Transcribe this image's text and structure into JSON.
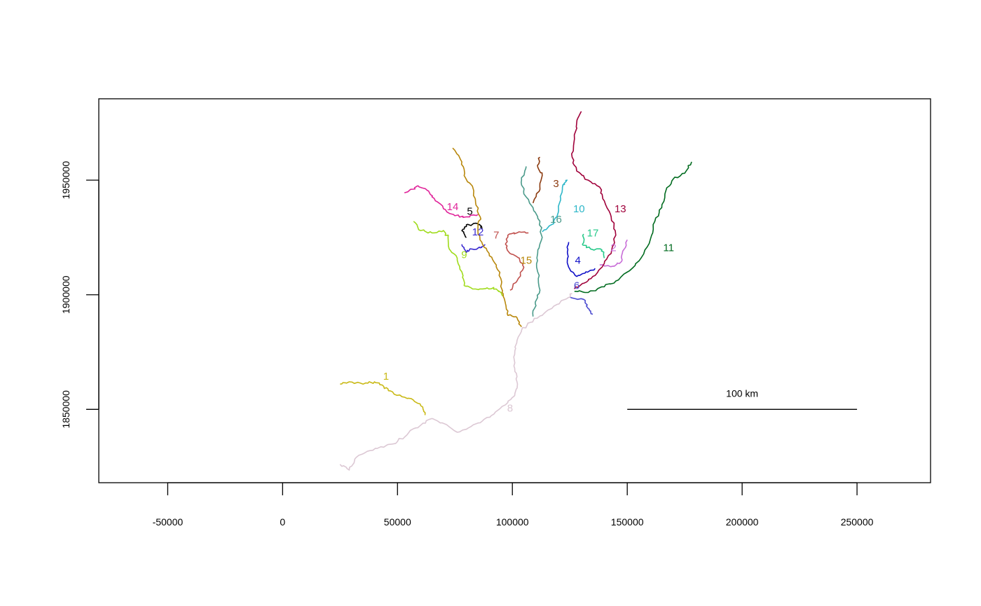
{
  "map": {
    "type": "river-network",
    "x_axis": {
      "ticks": [
        -50000,
        0,
        50000,
        100000,
        150000,
        200000,
        250000
      ],
      "tick_labels": [
        "-50000",
        "0",
        "50000",
        "100000",
        "150000",
        "200000",
        "250000"
      ],
      "range": [
        -80000,
        282000
      ]
    },
    "y_axis": {
      "ticks": [
        1850000,
        1900000,
        1950000
      ],
      "tick_labels": [
        "1850000",
        "1900000",
        "1950000"
      ],
      "range": [
        1818000,
        1985500
      ]
    },
    "scale_bar": {
      "label": "100 km",
      "from_x": 150000,
      "to_x": 250000,
      "y": 1850000
    },
    "reaches": [
      {
        "id": "1",
        "label": "1",
        "color": "#c9b916",
        "label_at": [
          45000,
          1864500
        ],
        "path": [
          [
            25000,
            1861000
          ],
          [
            29000,
            1862000
          ],
          [
            35000,
            1861000
          ],
          [
            40000,
            1862000
          ],
          [
            44000,
            1860000
          ],
          [
            47000,
            1858000
          ],
          [
            52000,
            1855500
          ],
          [
            57000,
            1854000
          ],
          [
            61000,
            1851000
          ],
          [
            62000,
            1847500
          ]
        ]
      },
      {
        "id": "2",
        "label": "2",
        "color": "#c86dd7",
        "label_at": [
          144000,
          1920500
        ],
        "path": [
          [
            150000,
            1924000
          ],
          [
            148000,
            1919000
          ],
          [
            147500,
            1914500
          ],
          [
            144000,
            1912500
          ],
          [
            138000,
            1913000
          ]
        ]
      },
      {
        "id": "3",
        "label": "3",
        "color": "#8b3a0f",
        "label_at": [
          119000,
          1948500
        ],
        "path": [
          [
            112000,
            1960000
          ],
          [
            111000,
            1956000
          ],
          [
            113000,
            1952000
          ],
          [
            112000,
            1946000
          ],
          [
            109000,
            1940000
          ]
        ]
      },
      {
        "id": "4",
        "label": "4",
        "color": "#1010c8",
        "label_at": [
          128500,
          1915000
        ],
        "path": [
          [
            124500,
            1923000
          ],
          [
            124000,
            1918000
          ],
          [
            124500,
            1912000
          ],
          [
            128000,
            1908000
          ],
          [
            132000,
            1910000
          ],
          [
            136000,
            1911500
          ]
        ]
      },
      {
        "id": "5",
        "label": "5",
        "color": "#000000",
        "label_at": [
          81500,
          1936500
        ],
        "path": [
          [
            80000,
            1925000
          ],
          [
            78000,
            1928000
          ],
          [
            80000,
            1930500
          ],
          [
            85000,
            1931000
          ],
          [
            87000,
            1929000
          ]
        ]
      },
      {
        "id": "6",
        "label": "6",
        "color": "#4c4cd0",
        "label_at": [
          128000,
          1904000
        ],
        "path": [
          [
            125000,
            1899000
          ],
          [
            131000,
            1898000
          ],
          [
            133000,
            1894000
          ],
          [
            135000,
            1891500
          ]
        ]
      },
      {
        "id": "7",
        "label": "7",
        "color": "#c0504d",
        "label_at": [
          93000,
          1926000
        ],
        "path": [
          [
            107000,
            1927000
          ],
          [
            102000,
            1927000
          ],
          [
            98000,
            1926000
          ],
          [
            97000,
            1922000
          ],
          [
            99000,
            1918000
          ],
          [
            103000,
            1916000
          ],
          [
            105000,
            1912000
          ],
          [
            102000,
            1906000
          ],
          [
            99000,
            1902000
          ]
        ]
      },
      {
        "id": "8",
        "label": "8",
        "color": "#dcc8d4",
        "label_at": [
          99000,
          1850500
        ],
        "path": [
          [
            25000,
            1826000
          ],
          [
            29000,
            1823500
          ],
          [
            32000,
            1829000
          ],
          [
            38000,
            1832000
          ],
          [
            44000,
            1833500
          ],
          [
            50000,
            1836000
          ],
          [
            55000,
            1840000
          ],
          [
            60000,
            1843000
          ],
          [
            65000,
            1846000
          ],
          [
            71000,
            1843500
          ],
          [
            76000,
            1840000
          ],
          [
            82000,
            1842500
          ],
          [
            87000,
            1845000
          ],
          [
            92000,
            1848000
          ],
          [
            97000,
            1852000
          ],
          [
            101000,
            1856000
          ],
          [
            102000,
            1862000
          ],
          [
            101000,
            1868000
          ],
          [
            101000,
            1874000
          ],
          [
            102000,
            1880000
          ],
          [
            104000,
            1884500
          ],
          [
            108000,
            1888000
          ],
          [
            113000,
            1891000
          ],
          [
            118000,
            1895000
          ],
          [
            123000,
            1898000
          ],
          [
            126000,
            1900500
          ]
        ]
      },
      {
        "id": "9",
        "label": "9",
        "color": "#9fdb1a",
        "label_at": [
          79000,
          1917500
        ],
        "path": [
          [
            57000,
            1932000
          ],
          [
            60000,
            1928000
          ],
          [
            65000,
            1927000
          ],
          [
            70000,
            1928000
          ],
          [
            72000,
            1925000
          ],
          [
            72500,
            1920000
          ],
          [
            76000,
            1916000
          ],
          [
            78000,
            1910000
          ],
          [
            79000,
            1904000
          ],
          [
            84000,
            1902500
          ],
          [
            89000,
            1903000
          ],
          [
            93000,
            1902500
          ],
          [
            96000,
            1899500
          ]
        ]
      },
      {
        "id": "10",
        "label": "10",
        "color": "#2eb7c9",
        "label_at": [
          129000,
          1937500
        ],
        "path": [
          [
            124000,
            1950000
          ],
          [
            122000,
            1948000
          ],
          [
            121000,
            1942000
          ],
          [
            120000,
            1936000
          ],
          [
            118000,
            1931000
          ],
          [
            113000,
            1927500
          ]
        ]
      },
      {
        "id": "11",
        "label": "11",
        "color": "#006b1f",
        "label_at": [
          168000,
          1920500
        ],
        "path": [
          [
            178000,
            1958000
          ],
          [
            175000,
            1953000
          ],
          [
            170000,
            1950500
          ],
          [
            167000,
            1946000
          ],
          [
            165000,
            1938000
          ],
          [
            162000,
            1932000
          ],
          [
            160000,
            1924000
          ],
          [
            156000,
            1916000
          ],
          [
            151000,
            1910500
          ],
          [
            145000,
            1906000
          ],
          [
            140000,
            1903500
          ],
          [
            133000,
            1901000
          ],
          [
            127000,
            1901500
          ]
        ]
      },
      {
        "id": "12",
        "label": "12",
        "color": "#3a2ad0",
        "label_at": [
          85000,
          1927500
        ],
        "path": [
          [
            78000,
            1922000
          ],
          [
            80000,
            1918500
          ],
          [
            82000,
            1920000
          ],
          [
            86000,
            1920500
          ],
          [
            88000,
            1922000
          ]
        ]
      },
      {
        "id": "13",
        "label": "13",
        "color": "#a0003a",
        "label_at": [
          147000,
          1937500
        ],
        "path": [
          [
            130000,
            1980000
          ],
          [
            128000,
            1975000
          ],
          [
            127000,
            1968000
          ],
          [
            126000,
            1960000
          ],
          [
            128000,
            1954000
          ],
          [
            133000,
            1950000
          ],
          [
            138000,
            1947000
          ],
          [
            140000,
            1941000
          ],
          [
            143000,
            1934000
          ],
          [
            145000,
            1926000
          ],
          [
            143000,
            1918000
          ],
          [
            139000,
            1912000
          ],
          [
            135000,
            1908000
          ],
          [
            131000,
            1905000
          ],
          [
            127000,
            1902500
          ]
        ]
      },
      {
        "id": "14",
        "label": "14",
        "color": "#e0249a",
        "label_at": [
          74000,
          1938500
        ],
        "path": [
          [
            53000,
            1944500
          ],
          [
            56000,
            1946000
          ],
          [
            59000,
            1947500
          ],
          [
            63000,
            1945500
          ],
          [
            66000,
            1942000
          ],
          [
            70000,
            1937500
          ],
          [
            75000,
            1934500
          ],
          [
            80000,
            1934000
          ],
          [
            85000,
            1935000
          ]
        ]
      },
      {
        "id": "15",
        "label": "15",
        "color": "#b8870b",
        "label_at": [
          106000,
          1915000
        ],
        "path": [
          [
            74000,
            1964000
          ],
          [
            78000,
            1958000
          ],
          [
            79000,
            1952000
          ],
          [
            83000,
            1946000
          ],
          [
            84000,
            1940000
          ],
          [
            86000,
            1934000
          ],
          [
            85000,
            1928000
          ],
          [
            87000,
            1922000
          ],
          [
            90000,
            1917000
          ],
          [
            93000,
            1913000
          ],
          [
            95000,
            1907000
          ],
          [
            95500,
            1901000
          ],
          [
            97000,
            1896000
          ],
          [
            98000,
            1891000
          ],
          [
            102000,
            1890000
          ],
          [
            104000,
            1886000
          ]
        ]
      },
      {
        "id": "16",
        "label": "16",
        "color": "#4a9a8a",
        "label_at": [
          119000,
          1933000
        ],
        "path": [
          [
            106000,
            1956000
          ],
          [
            104000,
            1950000
          ],
          [
            105000,
            1944000
          ],
          [
            109000,
            1938000
          ],
          [
            112000,
            1932000
          ],
          [
            113000,
            1925000
          ],
          [
            111000,
            1918000
          ],
          [
            111000,
            1910000
          ],
          [
            112000,
            1902000
          ],
          [
            110000,
            1896000
          ],
          [
            109000,
            1890500
          ]
        ]
      },
      {
        "id": "17",
        "label": "17",
        "color": "#27c98a",
        "label_at": [
          135000,
          1927000
        ],
        "path": [
          [
            131000,
            1926500
          ],
          [
            130500,
            1922000
          ],
          [
            134000,
            1920000
          ],
          [
            139000,
            1919500
          ],
          [
            140000,
            1916000
          ]
        ]
      }
    ]
  }
}
